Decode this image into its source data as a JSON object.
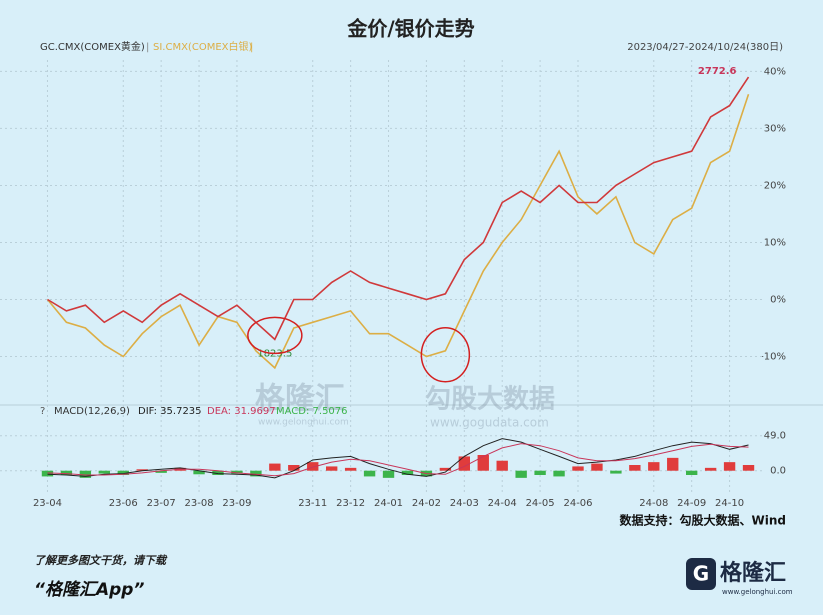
{
  "page": {
    "title": "金价/银价走势",
    "source": "数据支持：勾股大数据、Wind",
    "promo": "了解更多图文干货，请下载",
    "app": "“格隆汇App”",
    "logo": "格隆汇",
    "logo_url": "www.gelonghui.com"
  },
  "watermark": {
    "left": "格隆汇",
    "left_url": "www.gelonghui.com",
    "right": "勾股大数据",
    "right_url": "www.gogudata.com"
  },
  "chart_data": [
    {
      "type": "line",
      "date_range": "2023/04/27-2024/10/24(380日)",
      "annotations": [
        "2772.6",
        "1823.5"
      ],
      "categories": [
        "23-04",
        null,
        null,
        null,
        "23-06",
        null,
        "23-07",
        null,
        "23-08",
        null,
        "23-09",
        null,
        null,
        null,
        "23-11",
        null,
        "23-12",
        null,
        "24-01",
        null,
        "24-02",
        null,
        "24-03",
        null,
        "24-04",
        null,
        "24-05",
        null,
        "24-06",
        null,
        null,
        null,
        "24-08",
        null,
        "24-09",
        null,
        "24-10",
        null
      ],
      "series": [
        {
          "name": "GC.CMX(COMEX黄金)",
          "color": "#d0393b",
          "values": [
            0,
            -2,
            -1,
            -4,
            -2,
            -4,
            -1,
            1,
            -1,
            -3,
            -1,
            -4,
            -7,
            0,
            0,
            3,
            5,
            3,
            2,
            1,
            0,
            1,
            7,
            10,
            17,
            19,
            17,
            20,
            17,
            17,
            20,
            22,
            24,
            25,
            26,
            32,
            34,
            39
          ]
        },
        {
          "name": "SI.CMX(COMEX白银)",
          "color": "#dcae45",
          "values": [
            0,
            -4,
            -5,
            -8,
            -10,
            -6,
            -3,
            -1,
            -8,
            -3,
            -4,
            -9,
            -12,
            -5,
            -4,
            -3,
            -2,
            -6,
            -6,
            -8,
            -10,
            -9,
            -2,
            5,
            10,
            14,
            20,
            26,
            18,
            15,
            18,
            10,
            8,
            14,
            16,
            24,
            26,
            36
          ]
        }
      ],
      "ylim": [
        -15,
        42
      ],
      "yticks": [
        {
          "value": 40,
          "label": "40%"
        },
        {
          "value": 30,
          "label": "30%"
        },
        {
          "value": 20,
          "label": "20%"
        },
        {
          "value": 10,
          "label": "10%"
        },
        {
          "value": 0,
          "label": "0%"
        },
        {
          "value": -10,
          "label": "-10%"
        }
      ],
      "grid": true
    },
    {
      "type": "macd",
      "help": "?",
      "label": "MACD(12,26,9)",
      "dif_label": "DIF: 35.7235",
      "dea_label": "DEA: 31.9697",
      "macd_label": "MACD: 7.5076",
      "series": [
        {
          "name": "DIF",
          "color": "#222222",
          "values": [
            -5,
            -6,
            -8,
            -5,
            -4,
            0,
            2,
            4,
            0,
            -4,
            -5,
            -6,
            -10,
            0,
            15,
            18,
            20,
            10,
            2,
            -5,
            -8,
            -2,
            20,
            35,
            45,
            40,
            30,
            20,
            10,
            12,
            15,
            20,
            28,
            35,
            40,
            38,
            30,
            36
          ]
        },
        {
          "name": "DEA",
          "color": "#c8365a",
          "values": [
            -3,
            -4,
            -6,
            -6,
            -5,
            -3,
            0,
            2,
            2,
            0,
            -3,
            -5,
            -7,
            -4,
            5,
            12,
            16,
            14,
            8,
            2,
            -4,
            -5,
            6,
            20,
            32,
            38,
            35,
            28,
            18,
            14,
            14,
            17,
            22,
            28,
            34,
            37,
            34,
            33
          ]
        }
      ],
      "values": [
        -8,
        -6,
        -10,
        -4,
        -6,
        2,
        -3,
        4,
        -5,
        -6,
        -4,
        -8,
        10,
        8,
        12,
        6,
        4,
        -8,
        -10,
        -6,
        -8,
        4,
        20,
        22,
        14,
        -10,
        -6,
        -8,
        6,
        10,
        -4,
        8,
        12,
        18,
        -6,
        4,
        12,
        8
      ],
      "up_color": "#e03c3c",
      "down_color": "#3cb44b",
      "ylim": [
        -34,
        64
      ],
      "yticks": [
        {
          "value": 49,
          "label": "49.0"
        },
        {
          "value": 0,
          "label": "0.0"
        }
      ],
      "grid": true
    }
  ]
}
